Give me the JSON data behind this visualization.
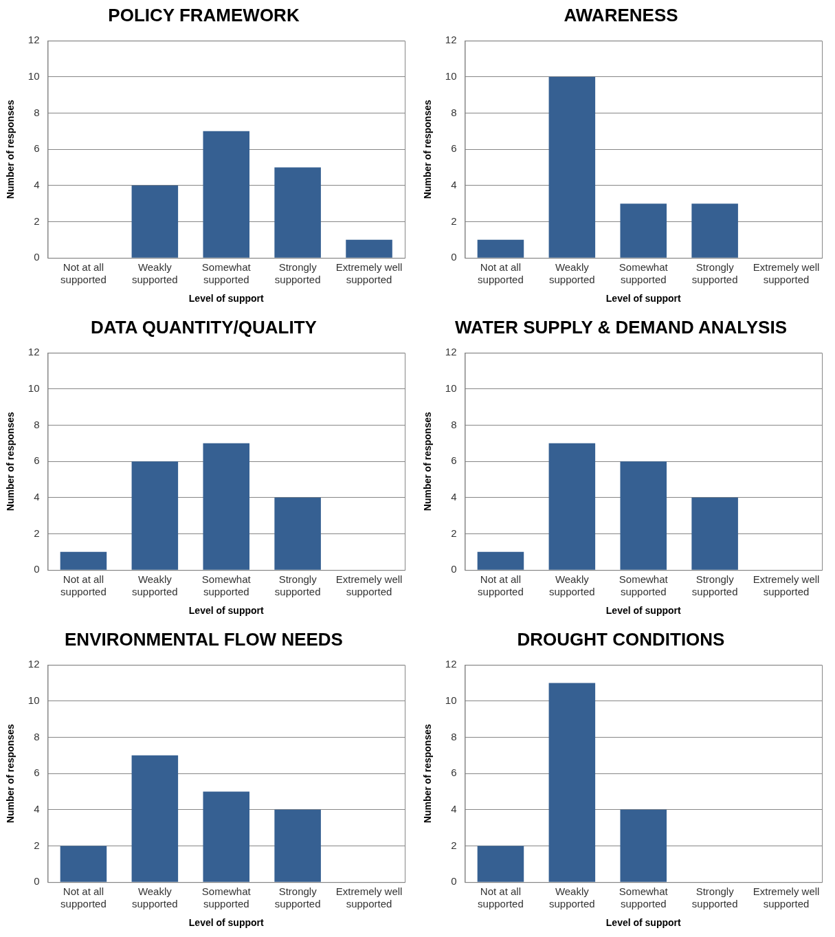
{
  "chart_data": [
    {
      "type": "bar",
      "title": "POLICY FRAMEWORK",
      "xlabel": "Level of support",
      "ylabel": "Number of responses",
      "categories": [
        "Not at all supported",
        "Weakly supported",
        "Somewhat supported",
        "Strongly supported",
        "Extremely well supported"
      ],
      "values": [
        0,
        4,
        7,
        5,
        1
      ],
      "color": "#366092",
      "ylim": [
        0,
        12
      ],
      "yticks": [
        0,
        2,
        4,
        6,
        8,
        10,
        12
      ],
      "grid": "y",
      "legend": false
    },
    {
      "type": "bar",
      "title": "AWARENESS",
      "xlabel": "Level of support",
      "ylabel": "Number of responses",
      "categories": [
        "Not at all supported",
        "Weakly supported",
        "Somewhat supported",
        "Strongly supported",
        "Extremely well supported"
      ],
      "values": [
        1,
        10,
        3,
        3,
        0
      ],
      "color": "#366092",
      "ylim": [
        0,
        12
      ],
      "yticks": [
        0,
        2,
        4,
        6,
        8,
        10,
        12
      ],
      "grid": "y",
      "legend": false
    },
    {
      "type": "bar",
      "title": "DATA QUANTITY/QUALITY",
      "xlabel": "Level of support",
      "ylabel": "Number of responses",
      "categories": [
        "Not at all supported",
        "Weakly supported",
        "Somewhat supported",
        "Strongly supported",
        "Extremely well supported"
      ],
      "values": [
        1,
        6,
        7,
        4,
        0
      ],
      "color": "#366092",
      "ylim": [
        0,
        12
      ],
      "yticks": [
        0,
        2,
        4,
        6,
        8,
        10,
        12
      ],
      "grid": "y",
      "legend": false
    },
    {
      "type": "bar",
      "title": "WATER SUPPLY & DEMAND ANALYSIS",
      "xlabel": "Level of support",
      "ylabel": "Number of responses",
      "categories": [
        "Not at all supported",
        "Weakly supported",
        "Somewhat supported",
        "Strongly supported",
        "Extremely well supported"
      ],
      "values": [
        1,
        7,
        6,
        4,
        0
      ],
      "color": "#366092",
      "ylim": [
        0,
        12
      ],
      "yticks": [
        0,
        2,
        4,
        6,
        8,
        10,
        12
      ],
      "grid": "y",
      "legend": false
    },
    {
      "type": "bar",
      "title": "ENVIRONMENTAL FLOW NEEDS",
      "xlabel": "Level of support",
      "ylabel": "Number of responses",
      "categories": [
        "Not at all supported",
        "Weakly supported",
        "Somewhat supported",
        "Strongly supported",
        "Extremely well supported"
      ],
      "values": [
        2,
        7,
        5,
        4,
        0
      ],
      "color": "#366092",
      "ylim": [
        0,
        12
      ],
      "yticks": [
        0,
        2,
        4,
        6,
        8,
        10,
        12
      ],
      "grid": "y",
      "legend": false
    },
    {
      "type": "bar",
      "title": "DROUGHT CONDITIONS",
      "xlabel": "Level of support",
      "ylabel": "Number of responses",
      "categories": [
        "Not at all supported",
        "Weakly supported",
        "Somewhat supported",
        "Strongly supported",
        "Extremely well supported"
      ],
      "values": [
        2,
        11,
        4,
        0,
        0
      ],
      "color": "#366092",
      "ylim": [
        0,
        12
      ],
      "yticks": [
        0,
        2,
        4,
        6,
        8,
        10,
        12
      ],
      "grid": "y",
      "legend": false
    }
  ]
}
